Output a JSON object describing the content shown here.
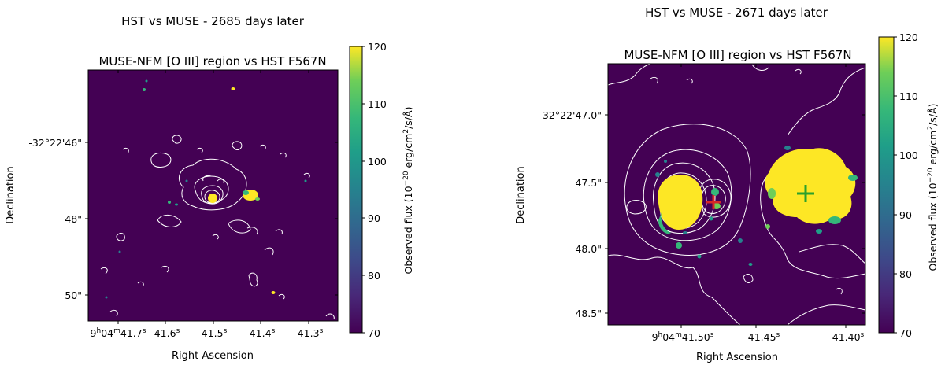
{
  "chart_data": [
    {
      "type": "heatmap",
      "suptitle": "HST vs MUSE - 2685 days later",
      "title": "MUSE-NFM [O III] region vs HST F567N",
      "xlabel": "Right Ascension",
      "ylabel": "Declination",
      "xticks": [
        "9h04m41.7s",
        "41.6s",
        "41.5s",
        "41.4s",
        "41.3s"
      ],
      "yticks": [
        "-32°22'46\"",
        "48\"",
        "50\""
      ],
      "colorbar": {
        "label": "Observed flux (10^-20 erg/cm²/s/Å)",
        "ticks": [
          70,
          80,
          90,
          100,
          110,
          120
        ],
        "range": [
          70,
          120
        ],
        "colormap": "viridis"
      },
      "markers": [],
      "grid": false
    },
    {
      "type": "heatmap",
      "suptitle": "HST vs MUSE - 2671 days later",
      "title": "MUSE-NFM [O III] region vs HST F567N",
      "xlabel": "Right Ascension",
      "ylabel": "Declination",
      "xticks": [
        "9h04m41.50s",
        "41.45s",
        "41.40s"
      ],
      "yticks": [
        "-32°22'47.0\"",
        "47.5\"",
        "48.0\"",
        "48.5\""
      ],
      "colorbar": {
        "label": "Observed flux (10^-20 erg/cm²/s/Å)",
        "ticks": [
          70,
          80,
          90,
          100,
          110,
          120
        ],
        "range": [
          70,
          120
        ],
        "colormap": "viridis"
      },
      "markers": [
        {
          "symbol": "+",
          "color": "red"
        },
        {
          "symbol": "+",
          "color": "green"
        }
      ],
      "grid": false
    }
  ],
  "colors": {
    "background": "#440154",
    "high": "#fde725",
    "mid": "#35b779",
    "contour": "#ffffff",
    "marker_red": "#d62728",
    "marker_green": "#2ca02c"
  }
}
